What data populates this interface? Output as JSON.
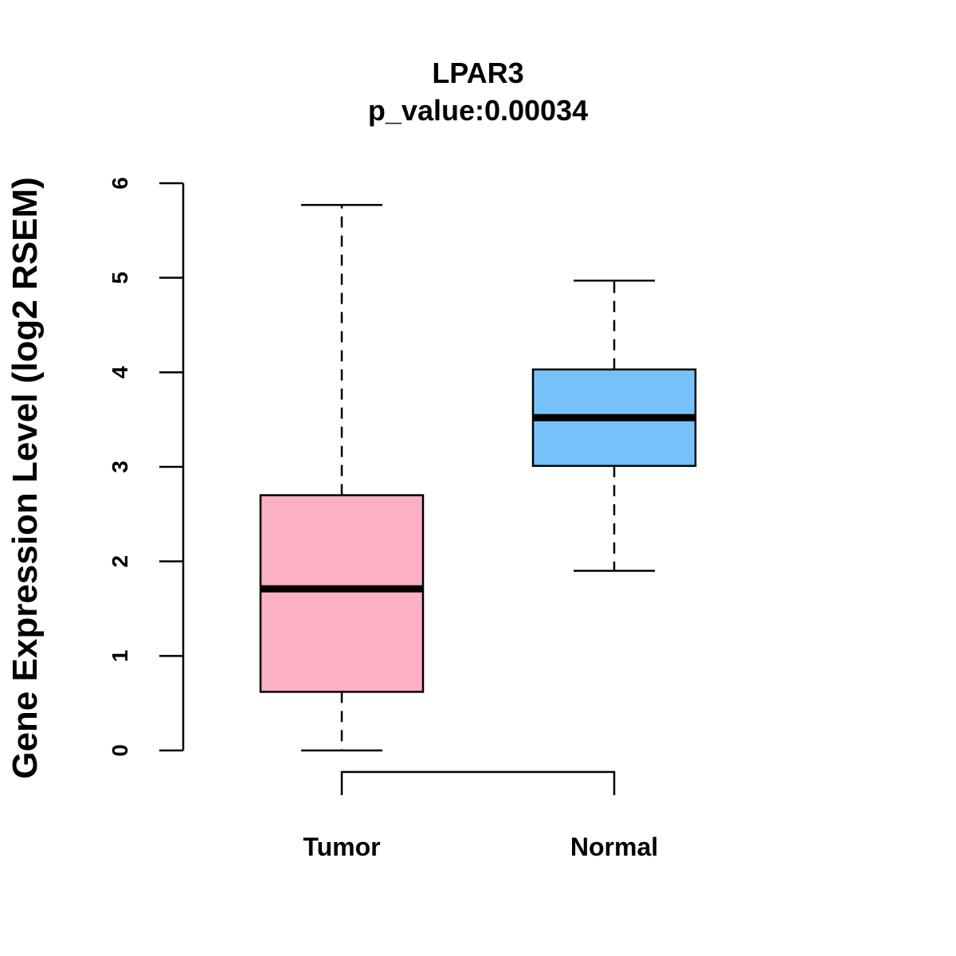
{
  "chart_data": {
    "type": "box",
    "title": "LPAR3",
    "subtitle": "p_value:0.00034",
    "xlabel": "",
    "ylabel": "Gene Expression Level (log2 RSEM)",
    "ylim": [
      0,
      6
    ],
    "yticks": [
      "0",
      "1",
      "2",
      "3",
      "4",
      "5",
      "6"
    ],
    "grid": false,
    "legend": "none",
    "categories": [
      "Tumor",
      "Normal"
    ],
    "boxes": [
      {
        "name": "Tumor",
        "min": 0.0,
        "q1": 0.62,
        "median": 1.71,
        "q3": 2.7,
        "max": 5.77,
        "color": "#FBB0C3"
      },
      {
        "name": "Normal",
        "min": 1.9,
        "q1": 3.01,
        "median": 3.52,
        "q3": 4.03,
        "max": 4.97,
        "color": "#76C2F8"
      }
    ],
    "comparison_bracket": {
      "from": "Tumor",
      "to": "Normal"
    }
  }
}
